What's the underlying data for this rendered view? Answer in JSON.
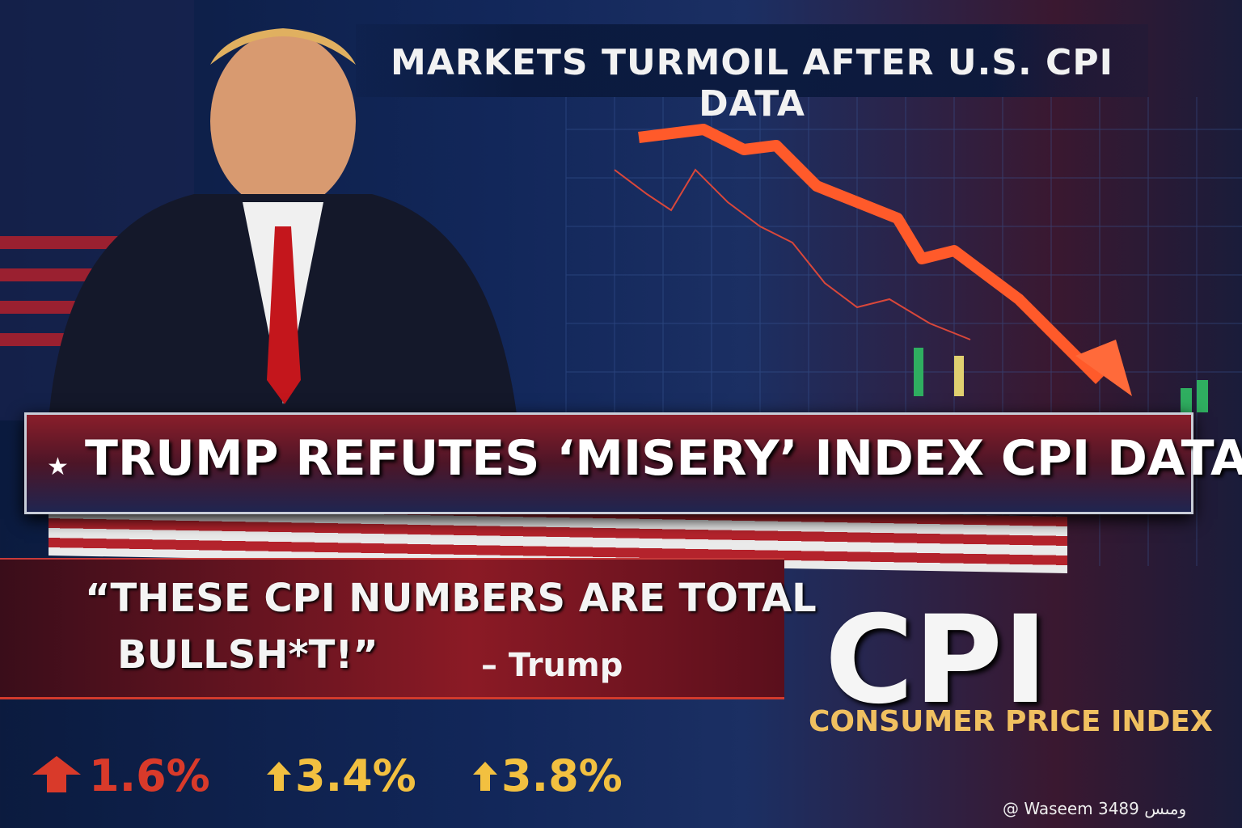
{
  "header": {
    "title": "MARKETS TURMOIL AFTER U.S. CPI DATA"
  },
  "banner": {
    "headline": "TRUMP REFUTES ‘MISERY’ INDEX CPI DATA"
  },
  "quote": {
    "lines": [
      "“THESE CPI NUMBERS ARE TOTAL",
      "BULLSH*T!”"
    ],
    "attribution": "– Trump"
  },
  "cpi": {
    "title": "CPI",
    "subtitle": "CONSUMER PRICE INDEX"
  },
  "stats": [
    "1.6%",
    "3.4%",
    "3.8%"
  ],
  "watermark": "@ Waseem ومىس 3489"
}
